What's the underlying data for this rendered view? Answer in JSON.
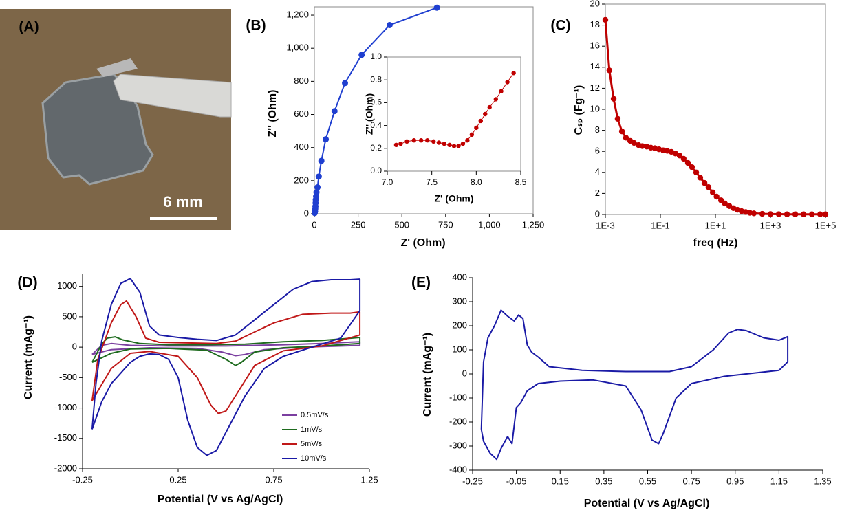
{
  "photo": {
    "label": "(A)",
    "scale_bar": "6 mm"
  },
  "chart_data": [
    {
      "type": "line",
      "panel_label": "(B)",
      "xlabel": "Z' (Ohm)",
      "ylabel": "Z'' (Ohm)",
      "xlim": [
        0,
        1250
      ],
      "ylim": [
        0,
        1250
      ],
      "xticks": [
        0,
        250,
        500,
        750,
        {
          "value": 1000,
          "label": "1,000"
        },
        {
          "value": 1250,
          "label": "1,250"
        }
      ],
      "yticks": [
        0,
        200,
        400,
        600,
        800,
        {
          "value": 1000,
          "label": "1,000"
        },
        {
          "value": 1200,
          "label": "1,200"
        }
      ],
      "frame": "box",
      "markers": true,
      "series": [
        {
          "color": "#1f3fd0",
          "x": [
            2,
            4,
            5,
            6,
            7,
            8,
            10,
            12,
            18,
            25,
            40,
            65,
            115,
            175,
            270,
            430,
            700
          ],
          "values": [
            5,
            15,
            30,
            45,
            65,
            85,
            105,
            130,
            160,
            225,
            320,
            450,
            620,
            790,
            960,
            1140,
            1245
          ]
        }
      ]
    },
    {
      "type": "line",
      "xlabel": "Z' (Ohm)",
      "ylabel": "Z'' (Ohm)",
      "xlim": [
        7,
        8.5
      ],
      "ylim": [
        0,
        1
      ],
      "xticks": [
        {
          "value": 7,
          "label": "7.0"
        },
        7.5,
        {
          "value": 8,
          "label": "8.0"
        },
        8.5
      ],
      "yticks": [
        {
          "value": 0,
          "label": "0.0"
        },
        0.2,
        0.4,
        0.6,
        0.8,
        {
          "value": 1,
          "label": "1.0"
        }
      ],
      "frame": "box",
      "markers": true,
      "series": [
        {
          "color": "#c00000",
          "x": [
            7.1,
            7.15,
            7.22,
            7.3,
            7.38,
            7.45,
            7.52,
            7.58,
            7.64,
            7.7,
            7.75,
            7.8,
            7.85,
            7.9,
            7.95,
            8.0,
            8.05,
            8.1,
            8.15,
            8.22,
            8.28,
            8.35,
            8.42
          ],
          "values": [
            0.23,
            0.24,
            0.26,
            0.27,
            0.27,
            0.27,
            0.26,
            0.25,
            0.24,
            0.23,
            0.22,
            0.22,
            0.24,
            0.27,
            0.32,
            0.38,
            0.44,
            0.5,
            0.56,
            0.63,
            0.7,
            0.78,
            0.86
          ]
        }
      ]
    },
    {
      "type": "line",
      "panel_label": "(C)",
      "xlabel": "freq (Hz)",
      "ylabel": "Cₛₚ (Fg⁻¹)",
      "xscale": "log",
      "xlim": [
        0.001,
        100000
      ],
      "ylim": [
        0,
        20
      ],
      "xticks": [
        {
          "value": 0.001,
          "label": "1E-3"
        },
        {
          "value": 0.1,
          "label": "1E-1"
        },
        {
          "value": 10,
          "label": "1E+1"
        },
        {
          "value": 1000,
          "label": "1E+3"
        },
        {
          "value": 100000,
          "label": "1E+5"
        }
      ],
      "yticks": [
        0,
        2,
        4,
        6,
        8,
        10,
        12,
        14,
        16,
        18,
        20
      ],
      "frame": "box",
      "markers": true,
      "series": [
        {
          "color": "#c00000",
          "x": [
            0.001,
            0.0014,
            0.002,
            0.0028,
            0.004,
            0.0056,
            0.008,
            0.011,
            0.016,
            0.022,
            0.032,
            0.045,
            0.063,
            0.089,
            0.126,
            0.178,
            0.25,
            0.35,
            0.5,
            0.7,
            1,
            1.4,
            2,
            2.8,
            4,
            5.6,
            8,
            11,
            16,
            22,
            32,
            45,
            63,
            89,
            126,
            178,
            250,
            500,
            1000,
            2000,
            4000,
            8000,
            16000,
            32000,
            64000,
            100000
          ],
          "values": [
            18.5,
            13.7,
            11,
            9.1,
            7.9,
            7.3,
            7.0,
            6.8,
            6.6,
            6.5,
            6.45,
            6.35,
            6.3,
            6.2,
            6.1,
            6.05,
            5.95,
            5.8,
            5.6,
            5.3,
            4.9,
            4.5,
            4.0,
            3.5,
            3.0,
            2.6,
            2.1,
            1.7,
            1.35,
            1.05,
            0.8,
            0.6,
            0.45,
            0.32,
            0.23,
            0.16,
            0.11,
            0.06,
            0.04,
            0.03,
            0.02,
            0.02,
            0.02,
            0.02,
            0.02,
            0.02
          ]
        }
      ]
    },
    {
      "type": "line",
      "panel_label": "(D)",
      "xlabel": "Potential (V vs Ag/AgCl)",
      "ylabel": "Current (mAg⁻¹)",
      "xlim": [
        -0.25,
        1.25
      ],
      "ylim": [
        -2000,
        1200
      ],
      "xticks": [
        -0.25,
        0.25,
        0.75,
        1.25
      ],
      "yticks": [
        -2000,
        -1500,
        -1000,
        -500,
        0,
        500,
        1000
      ],
      "frame": "axes",
      "markers": false,
      "legend": "lower right",
      "series": [
        {
          "name": "0.5mV/s",
          "color": "#7b3fa0",
          "x": [
            -0.2,
            -0.15,
            -0.1,
            0,
            0.2,
            0.5,
            0.8,
            1,
            1.2,
            1.2,
            0.9,
            0.7,
            0.6,
            0.55,
            0.48,
            0.35,
            0.1,
            -0.1,
            -0.2
          ],
          "values": [
            -120,
            30,
            60,
            30,
            20,
            20,
            40,
            60,
            90,
            30,
            0,
            -40,
            -120,
            -140,
            -80,
            -20,
            -10,
            -40,
            -120
          ]
        },
        {
          "name": "1mV/s",
          "color": "#1e6b1e",
          "x": [
            -0.2,
            -0.15,
            -0.12,
            -0.08,
            -0.04,
            0.05,
            0.2,
            0.4,
            0.6,
            0.8,
            1,
            1.2,
            1.2,
            1,
            0.8,
            0.65,
            0.58,
            0.55,
            0.5,
            0.4,
            0.2,
            0,
            -0.1,
            -0.2
          ],
          "values": [
            -250,
            50,
            150,
            170,
            120,
            60,
            40,
            40,
            50,
            90,
            110,
            160,
            60,
            20,
            -10,
            -80,
            -250,
            -300,
            -200,
            -50,
            -20,
            -30,
            -100,
            -250
          ]
        },
        {
          "name": "5mV/s",
          "color": "#c01818",
          "x": [
            -0.2,
            -0.17,
            -0.1,
            -0.05,
            -0.02,
            0.03,
            0.08,
            0.15,
            0.3,
            0.45,
            0.55,
            0.65,
            0.75,
            0.9,
            1.05,
            1.15,
            1.2,
            1.2,
            1,
            0.8,
            0.65,
            0.55,
            0.5,
            0.46,
            0.42,
            0.35,
            0.25,
            0.1,
            0,
            -0.1,
            -0.2
          ],
          "values": [
            -880,
            -200,
            400,
            700,
            760,
            500,
            150,
            80,
            70,
            60,
            100,
            250,
            400,
            540,
            560,
            560,
            580,
            200,
            20,
            -60,
            -300,
            -800,
            -1050,
            -1090,
            -950,
            -500,
            -150,
            -70,
            -100,
            -350,
            -880
          ]
        },
        {
          "name": "10mV/s",
          "color": "#1a1aa6",
          "x": [
            -0.2,
            -0.18,
            -0.15,
            -0.1,
            -0.05,
            0,
            0.05,
            0.1,
            0.15,
            0.25,
            0.35,
            0.45,
            0.55,
            0.65,
            0.75,
            0.85,
            0.95,
            1.05,
            1.15,
            1.2,
            1.2,
            1.1,
            1,
            0.9,
            0.8,
            0.7,
            0.6,
            0.5,
            0.45,
            0.4,
            0.35,
            0.3,
            0.25,
            0.2,
            0.15,
            0.1,
            0.05,
            0,
            -0.1,
            -0.15,
            -0.2
          ],
          "values": [
            -1350,
            -600,
            100,
            700,
            1050,
            1130,
            900,
            350,
            200,
            160,
            130,
            110,
            200,
            450,
            700,
            950,
            1080,
            1110,
            1110,
            1120,
            600,
            150,
            50,
            -50,
            -150,
            -350,
            -800,
            -1400,
            -1700,
            -1780,
            -1650,
            -1200,
            -500,
            -200,
            -120,
            -110,
            -150,
            -250,
            -600,
            -900,
            -1350
          ]
        }
      ]
    },
    {
      "type": "line",
      "panel_label": "(E)",
      "xlabel": "Potential (V vs Ag/AgCl)",
      "ylabel": "Current (mAg⁻¹)",
      "xlim": [
        -0.25,
        1.35
      ],
      "ylim": [
        -400,
        400
      ],
      "xticks": [
        -0.25,
        -0.05,
        0.15,
        0.35,
        0.55,
        0.75,
        0.95,
        1.15,
        1.35
      ],
      "yticks": [
        -400,
        -300,
        -200,
        -100,
        0,
        100,
        200,
        300,
        400
      ],
      "frame": "axes",
      "markers": false,
      "series": [
        {
          "color": "#1a1aa6",
          "x": [
            -0.21,
            -0.2,
            -0.18,
            -0.15,
            -0.12,
            -0.09,
            -0.06,
            -0.04,
            -0.02,
            0,
            0.02,
            0.05,
            0.1,
            0.25,
            0.45,
            0.65,
            0.75,
            0.85,
            0.92,
            0.96,
            1,
            1.08,
            1.15,
            1.19,
            1.19,
            1.15,
            1,
            0.9,
            0.75,
            0.68,
            0.62,
            0.6,
            0.57,
            0.52,
            0.45,
            0.3,
            0.15,
            0.05,
            0,
            -0.03,
            -0.05,
            -0.07,
            -0.09,
            -0.12,
            -0.14,
            -0.17,
            -0.2,
            -0.21
          ],
          "values": [
            -230,
            50,
            150,
            200,
            265,
            240,
            220,
            245,
            230,
            120,
            90,
            70,
            30,
            15,
            10,
            10,
            30,
            100,
            170,
            185,
            180,
            150,
            140,
            155,
            50,
            15,
            0,
            -10,
            -40,
            -100,
            -250,
            -290,
            -275,
            -150,
            -50,
            -25,
            -30,
            -40,
            -70,
            -120,
            -140,
            -290,
            -260,
            -310,
            -355,
            -330,
            -280,
            -230
          ]
        }
      ]
    }
  ]
}
